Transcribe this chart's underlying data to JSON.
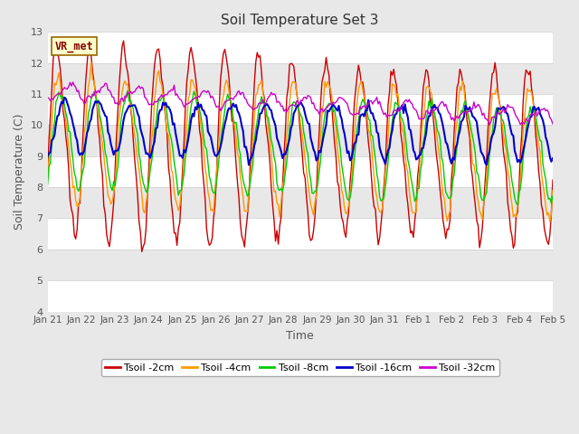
{
  "title": "Soil Temperature Set 3",
  "xlabel": "Time",
  "ylabel": "Soil Temperature (C)",
  "ylim": [
    4.0,
    13.0
  ],
  "yticks": [
    4.0,
    5.0,
    6.0,
    7.0,
    8.0,
    9.0,
    10.0,
    11.0,
    12.0,
    13.0
  ],
  "series_colors": {
    "Tsoil -2cm": "#cc0000",
    "Tsoil -4cm": "#ff9900",
    "Tsoil -8cm": "#00cc00",
    "Tsoil -16cm": "#0000cc",
    "Tsoil -32cm": "#cc00cc"
  },
  "background_color": "#e8e8e8",
  "plot_bg_color": "#ffffff",
  "band_colors": [
    "#ffffff",
    "#e8e8e8"
  ],
  "grid_color": "#cccccc",
  "vr_met_box_color": "#ffffcc",
  "vr_met_border_color": "#996600",
  "vr_met_text_color": "#880000",
  "legend_bg": "#ffffff",
  "n_points": 360,
  "x_start": 0,
  "x_end": 15,
  "xtick_labels": [
    "Jan 21",
    "Jan 22",
    "Jan 23",
    "Jan 24",
    "Jan 25",
    "Jan 26",
    "Jan 27",
    "Jan 28",
    "Jan 29",
    "Jan 30",
    "Jan 31",
    "Feb 1",
    "Feb 2",
    "Feb 3",
    "Feb 4",
    "Feb 5"
  ],
  "xtick_positions": [
    0,
    1,
    2,
    3,
    4,
    5,
    6,
    7,
    8,
    9,
    10,
    11,
    12,
    13,
    14,
    15
  ]
}
